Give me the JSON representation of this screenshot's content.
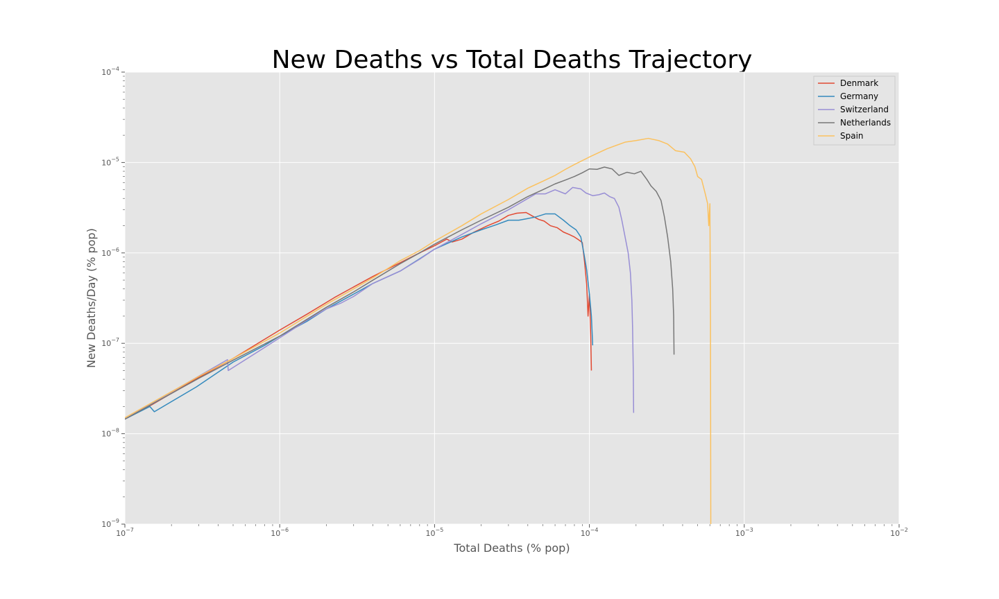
{
  "chart_data": {
    "type": "line",
    "title": "New Deaths vs Total Deaths Trajectory",
    "xlabel": "Total Deaths (% pop)",
    "ylabel": "New Deaths/Day (% pop)",
    "x_scale": "log",
    "y_scale": "log",
    "xlim": [
      1e-07,
      0.01
    ],
    "ylim": [
      1e-09,
      0.0001
    ],
    "x_ticks": [
      -7,
      -6,
      -5,
      -4,
      -3,
      -2
    ],
    "y_ticks": [
      -9,
      -8,
      -7,
      -6,
      -5,
      -4
    ],
    "tick_base": "10",
    "grid": true,
    "background": "#e5e5e5",
    "legend_position": "top-right",
    "series": [
      {
        "name": "Denmark",
        "color": "#e24a33",
        "points": [
          [
            1e-07,
            1.45e-08
          ],
          [
            1.5e-07,
            2.1e-08
          ],
          [
            3e-07,
            4.2e-08
          ],
          [
            5e-07,
            6.8e-08
          ],
          [
            1e-06,
            1.4e-07
          ],
          [
            1.5e-06,
            2.1e-07
          ],
          [
            2.25e-06,
            3.2e-07
          ],
          [
            3e-06,
            4.2e-07
          ],
          [
            4e-06,
            5.5e-07
          ],
          [
            6e-06,
            7.8e-07
          ],
          [
            8e-06,
            1e-06
          ],
          [
            1e-05,
            1.2e-06
          ],
          [
            1.2e-05,
            1.42e-06
          ],
          [
            1.3e-05,
            1.32e-06
          ],
          [
            1.5e-05,
            1.42e-06
          ],
          [
            1.8e-05,
            1.7e-06
          ],
          [
            2.2e-05,
            2e-06
          ],
          [
            2.6e-05,
            2.25e-06
          ],
          [
            3e-05,
            2.6e-06
          ],
          [
            3.4e-05,
            2.75e-06
          ],
          [
            3.9e-05,
            2.8e-06
          ],
          [
            4.3e-05,
            2.55e-06
          ],
          [
            4.7e-05,
            2.35e-06
          ],
          [
            5.1e-05,
            2.25e-06
          ],
          [
            5.6e-05,
            2e-06
          ],
          [
            6.2e-05,
            1.9e-06
          ],
          [
            6.8e-05,
            1.7e-06
          ],
          [
            7.4e-05,
            1.6e-06
          ],
          [
            8e-05,
            1.5e-06
          ],
          [
            8.5e-05,
            1.4e-06
          ],
          [
            9e-05,
            1.3e-06
          ],
          [
            9.3e-05,
            8e-07
          ],
          [
            9.6e-05,
            4.5e-07
          ],
          [
            9.8e-05,
            2e-07
          ],
          [
            0.0001,
            3.5e-07
          ],
          [
            0.000102,
            1.2e-07
          ],
          [
            0.000103,
            5e-08
          ]
        ]
      },
      {
        "name": "Germany",
        "color": "#348abd",
        "points": [
          [
            1e-07,
            1.45e-08
          ],
          [
            1.45e-07,
            2e-08
          ],
          [
            1.55e-07,
            1.75e-08
          ],
          [
            2.9e-07,
            3.3e-08
          ],
          [
            5e-07,
            6.2e-08
          ],
          [
            8e-07,
            9.5e-08
          ],
          [
            1e-06,
            1.2e-07
          ],
          [
            1.5e-06,
            1.75e-07
          ],
          [
            2e-06,
            2.4e-07
          ],
          [
            3e-06,
            3.5e-07
          ],
          [
            4e-06,
            4.6e-07
          ],
          [
            6e-06,
            6.3e-07
          ],
          [
            8e-06,
            8.6e-07
          ],
          [
            1e-05,
            1.1e-06
          ],
          [
            1.5e-05,
            1.5e-06
          ],
          [
            2e-05,
            1.8e-06
          ],
          [
            2.5e-05,
            2.05e-06
          ],
          [
            3e-05,
            2.3e-06
          ],
          [
            3.5e-05,
            2.3e-06
          ],
          [
            4e-05,
            2.4e-06
          ],
          [
            4.5e-05,
            2.5e-06
          ],
          [
            5.2e-05,
            2.7e-06
          ],
          [
            6e-05,
            2.7e-06
          ],
          [
            6.8e-05,
            2.3e-06
          ],
          [
            7.5e-05,
            2e-06
          ],
          [
            8.2e-05,
            1.8e-06
          ],
          [
            8.8e-05,
            1.5e-06
          ],
          [
            9.2e-05,
            1e-06
          ],
          [
            9.6e-05,
            6.5e-07
          ],
          [
            0.0001,
            3.5e-07
          ],
          [
            0.000103,
            2e-07
          ],
          [
            0.000105,
            9.5e-08
          ]
        ]
      },
      {
        "name": "Switzerland",
        "color": "#988ed5",
        "points": [
          [
            1e-07,
            1.45e-08
          ],
          [
            2e-07,
            2.9e-08
          ],
          [
            4.6e-07,
            6.6e-08
          ],
          [
            4.65e-07,
            5e-08
          ],
          [
            8e-07,
            9e-08
          ],
          [
            1e-06,
            1.15e-07
          ],
          [
            1.5e-06,
            1.8e-07
          ],
          [
            2e-06,
            2.4e-07
          ],
          [
            2.5e-06,
            2.8e-07
          ],
          [
            3e-06,
            3.3e-07
          ],
          [
            4e-06,
            4.6e-07
          ],
          [
            6e-06,
            6.3e-07
          ],
          [
            8e-06,
            8.5e-07
          ],
          [
            1e-05,
            1.1e-06
          ],
          [
            1.5e-05,
            1.6e-06
          ],
          [
            2e-05,
            2.1e-06
          ],
          [
            3e-05,
            3e-06
          ],
          [
            4e-05,
            4e-06
          ],
          [
            4.5e-05,
            4.5e-06
          ],
          [
            5.2e-05,
            4.5e-06
          ],
          [
            6e-05,
            5e-06
          ],
          [
            7e-05,
            4.5e-06
          ],
          [
            7.8e-05,
            5.3e-06
          ],
          [
            8.8e-05,
            5.1e-06
          ],
          [
            9.5e-05,
            4.6e-06
          ],
          [
            0.000105,
            4.3e-06
          ],
          [
            0.000115,
            4.4e-06
          ],
          [
            0.000125,
            4.6e-06
          ],
          [
            0.000135,
            4.2e-06
          ],
          [
            0.000145,
            4e-06
          ],
          [
            0.000155,
            3.2e-06
          ],
          [
            0.000162,
            2.3e-06
          ],
          [
            0.00017,
            1.5e-06
          ],
          [
            0.000178,
            1e-06
          ],
          [
            0.000184,
            6e-07
          ],
          [
            0.000188,
            3e-07
          ],
          [
            0.00019,
            1.5e-07
          ],
          [
            0.000192,
            5e-08
          ],
          [
            0.000193,
            1.7e-08
          ]
        ]
      },
      {
        "name": "Netherlands",
        "color": "#777777",
        "points": [
          [
            1e-07,
            1.45e-08
          ],
          [
            3e-07,
            4.1e-08
          ],
          [
            5e-07,
            6.5e-08
          ],
          [
            1e-06,
            1.2e-07
          ],
          [
            2e-06,
            2.5e-07
          ],
          [
            3e-06,
            3.7e-07
          ],
          [
            4e-06,
            5e-07
          ],
          [
            6e-06,
            7.6e-07
          ],
          [
            8e-06,
            1e-06
          ],
          [
            1e-05,
            1.25e-06
          ],
          [
            1.5e-05,
            1.8e-06
          ],
          [
            2e-05,
            2.3e-06
          ],
          [
            3e-05,
            3.2e-06
          ],
          [
            4e-05,
            4.2e-06
          ],
          [
            5e-05,
            5e-06
          ],
          [
            6e-05,
            5.8e-06
          ],
          [
            7e-05,
            6.4e-06
          ],
          [
            8e-05,
            7e-06
          ],
          [
            9e-05,
            7.7e-06
          ],
          [
            0.0001,
            8.5e-06
          ],
          [
            0.000112,
            8.4e-06
          ],
          [
            0.000125,
            8.9e-06
          ],
          [
            0.00014,
            8.5e-06
          ],
          [
            0.000155,
            7.2e-06
          ],
          [
            0.000175,
            7.8e-06
          ],
          [
            0.000195,
            7.5e-06
          ],
          [
            0.000215,
            8e-06
          ],
          [
            0.000235,
            6.5e-06
          ],
          [
            0.00025,
            5.5e-06
          ],
          [
            0.00027,
            4.8e-06
          ],
          [
            0.00029,
            3.8e-06
          ],
          [
            0.000305,
            2.5e-06
          ],
          [
            0.00032,
            1.5e-06
          ],
          [
            0.000335,
            8e-07
          ],
          [
            0.000345,
            4e-07
          ],
          [
            0.00035,
            2e-07
          ],
          [
            0.000352,
            7.5e-08
          ]
        ]
      },
      {
        "name": "Spain",
        "color": "#fbc15e",
        "points": [
          [
            1e-07,
            1.5e-08
          ],
          [
            3e-07,
            4.3e-08
          ],
          [
            5e-07,
            6.8e-08
          ],
          [
            1e-06,
            1.3e-07
          ],
          [
            2e-06,
            2.7e-07
          ],
          [
            3e-06,
            4e-07
          ],
          [
            4e-06,
            5.3e-07
          ],
          [
            6e-06,
            8.2e-07
          ],
          [
            8e-06,
            1.06e-06
          ],
          [
            1e-05,
            1.35e-06
          ],
          [
            1.5e-05,
            2e-06
          ],
          [
            2e-05,
            2.7e-06
          ],
          [
            3e-05,
            3.9e-06
          ],
          [
            4e-05,
            5.2e-06
          ],
          [
            5e-05,
            6.2e-06
          ],
          [
            6e-05,
            7.2e-06
          ],
          [
            7e-05,
            8.4e-06
          ],
          [
            8e-05,
            9.5e-06
          ],
          [
            0.0001,
            1.15e-05
          ],
          [
            0.00013,
            1.42e-05
          ],
          [
            0.00017,
            1.68e-05
          ],
          [
            0.0002,
            1.75e-05
          ],
          [
            0.00024,
            1.85e-05
          ],
          [
            0.00028,
            1.75e-05
          ],
          [
            0.00032,
            1.6e-05
          ],
          [
            0.00036,
            1.35e-05
          ],
          [
            0.00041,
            1.3e-05
          ],
          [
            0.00045,
            1.1e-05
          ],
          [
            0.00048,
            9e-06
          ],
          [
            0.0005,
            7e-06
          ],
          [
            0.00053,
            6.5e-06
          ],
          [
            0.00056,
            4.5e-06
          ],
          [
            0.00058,
            3.5e-06
          ],
          [
            0.00059,
            2e-06
          ],
          [
            0.0006,
            3.5e-06
          ],
          [
            0.000605,
            2e-07
          ],
          [
            0.000608,
            1e-09
          ]
        ]
      }
    ]
  }
}
